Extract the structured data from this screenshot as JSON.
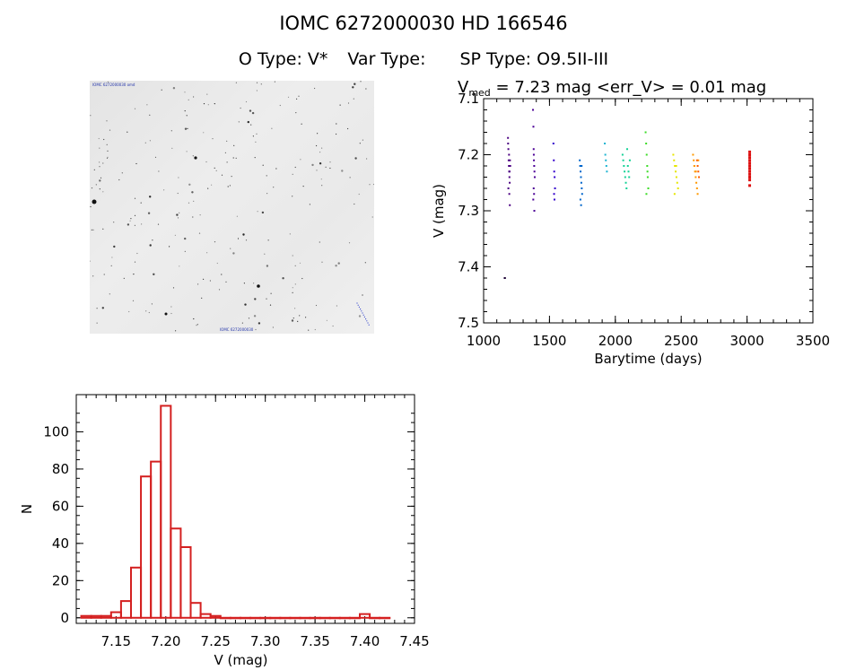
{
  "header": {
    "title": "IOMC 6272000030    HD 166546",
    "o_type": "O Type: V*",
    "var_type": "Var Type:",
    "sp_type": "SP Type: O9.5II-III",
    "vmed_prefix": "V",
    "vmed_sub": "med",
    "vmed_rest": " = 7.23 mag <err_V> = 0.01 mag"
  },
  "image_panel": {
    "top_label": "IOMC 6272000030 omd",
    "bottom_label": "IOMC 6272000030"
  },
  "chart_data": [
    {
      "type": "scatter",
      "name": "light-curve",
      "xlabel": "Barytime (days)",
      "ylabel": "V (mag)",
      "xlim": [
        1000,
        3500
      ],
      "ylim": [
        7.5,
        7.1
      ],
      "xticks": [
        "1000",
        "1500",
        "2000",
        "2500",
        "3000",
        "3500"
      ],
      "yticks": [
        "7.1",
        "7.2",
        "7.3",
        "7.4",
        "7.5"
      ],
      "series": [
        {
          "name": "t1160",
          "color": "#1a0033",
          "x": [
            1160,
            1162
          ],
          "y": [
            7.42,
            7.42
          ]
        },
        {
          "name": "t1190",
          "color": "#4b0082",
          "x": [
            1185,
            1188,
            1190,
            1192,
            1194,
            1196,
            1198,
            1200,
            1202,
            1188,
            1195,
            1199,
            1186,
            1193,
            1197
          ],
          "y": [
            7.17,
            7.19,
            7.21,
            7.22,
            7.23,
            7.24,
            7.25,
            7.21,
            7.22,
            7.26,
            7.27,
            7.29,
            7.18,
            7.2,
            7.23
          ]
        },
        {
          "name": "t1380",
          "color": "#4b0096",
          "x": [
            1375,
            1378,
            1380,
            1382,
            1384,
            1386,
            1388,
            1380,
            1383,
            1377,
            1385,
            1381
          ],
          "y": [
            7.12,
            7.15,
            7.19,
            7.21,
            7.22,
            7.23,
            7.24,
            7.26,
            7.27,
            7.28,
            7.3,
            7.2
          ]
        },
        {
          "name": "t1540",
          "color": "#3300cc",
          "x": [
            1530,
            1533,
            1536,
            1539,
            1542,
            1535,
            1538
          ],
          "y": [
            7.18,
            7.21,
            7.23,
            7.24,
            7.26,
            7.27,
            7.28
          ]
        },
        {
          "name": "t1740",
          "color": "#0066cc",
          "x": [
            1730,
            1733,
            1736,
            1739,
            1742,
            1745,
            1748,
            1735,
            1740,
            1744
          ],
          "y": [
            7.21,
            7.22,
            7.23,
            7.24,
            7.25,
            7.26,
            7.27,
            7.28,
            7.29,
            7.22
          ]
        },
        {
          "name": "t1930",
          "color": "#1eb4d2",
          "x": [
            1920,
            1924,
            1928,
            1932,
            1936
          ],
          "y": [
            7.18,
            7.2,
            7.21,
            7.22,
            7.23
          ]
        },
        {
          "name": "t2080",
          "color": "#14d296",
          "x": [
            2055,
            2060,
            2065,
            2070,
            2075,
            2080,
            2085,
            2090,
            2095,
            2100,
            2105,
            2110
          ],
          "y": [
            7.2,
            7.21,
            7.22,
            7.23,
            7.24,
            7.25,
            7.26,
            7.19,
            7.22,
            7.23,
            7.24,
            7.21
          ]
        },
        {
          "name": "t2240",
          "color": "#3cdc28",
          "x": [
            2230,
            2234,
            2238,
            2242,
            2246,
            2250,
            2236,
            2244
          ],
          "y": [
            7.16,
            7.18,
            7.2,
            7.22,
            7.24,
            7.26,
            7.27,
            7.23
          ]
        },
        {
          "name": "t2450",
          "color": "#e6e600",
          "x": [
            2440,
            2446,
            2452,
            2458,
            2464,
            2470,
            2476,
            2450,
            2462
          ],
          "y": [
            7.2,
            7.21,
            7.22,
            7.23,
            7.24,
            7.25,
            7.26,
            7.27,
            7.22
          ]
        },
        {
          "name": "t2610",
          "color": "#ff9900",
          "x": [
            2590,
            2595,
            2600,
            2605,
            2610,
            2615,
            2620,
            2625,
            2630,
            2600,
            2612
          ],
          "y": [
            7.2,
            7.21,
            7.22,
            7.23,
            7.24,
            7.25,
            7.26,
            7.27,
            7.21,
            7.22,
            7.23
          ]
        },
        {
          "name": "t2630",
          "color": "#ff5a00",
          "x": [
            2620,
            2625,
            2630,
            2635
          ],
          "y": [
            7.21,
            7.22,
            7.23,
            7.24
          ]
        },
        {
          "name": "t3020",
          "color": "#dd1111",
          "x": [
            3020,
            3020,
            3020,
            3020,
            3020,
            3020,
            3020,
            3020,
            3020,
            3020,
            3020,
            3020
          ],
          "y": [
            7.195,
            7.2,
            7.205,
            7.21,
            7.215,
            7.22,
            7.225,
            7.23,
            7.235,
            7.24,
            7.245,
            7.255
          ]
        }
      ]
    },
    {
      "type": "bar",
      "name": "histogram",
      "xlabel": "V (mag)",
      "ylabel": "N",
      "xlim": [
        7.11,
        7.45
      ],
      "ylim": [
        -3,
        120
      ],
      "xticks": [
        "7.15",
        "7.20",
        "7.25",
        "7.30",
        "7.35",
        "7.40",
        "7.45"
      ],
      "yticks": [
        "0",
        "20",
        "40",
        "60",
        "80",
        "100"
      ],
      "bin_width": 0.01,
      "bin_start": [
        7.12,
        7.13,
        7.14,
        7.15,
        7.16,
        7.17,
        7.18,
        7.19,
        7.2,
        7.21,
        7.22,
        7.23,
        7.24,
        7.25,
        7.26,
        7.27,
        7.28,
        7.29,
        7.3,
        7.31,
        7.32,
        7.33,
        7.34,
        7.35,
        7.36,
        7.37,
        7.38,
        7.39,
        7.4,
        7.41,
        7.42
      ],
      "values": [
        1,
        1,
        1,
        3,
        9,
        27,
        76,
        84,
        114,
        48,
        38,
        8,
        2,
        1,
        0,
        0,
        0,
        0,
        0,
        0,
        0,
        0,
        0,
        0,
        0,
        0,
        0,
        0,
        2,
        0,
        0
      ],
      "color": "#d42020"
    }
  ]
}
